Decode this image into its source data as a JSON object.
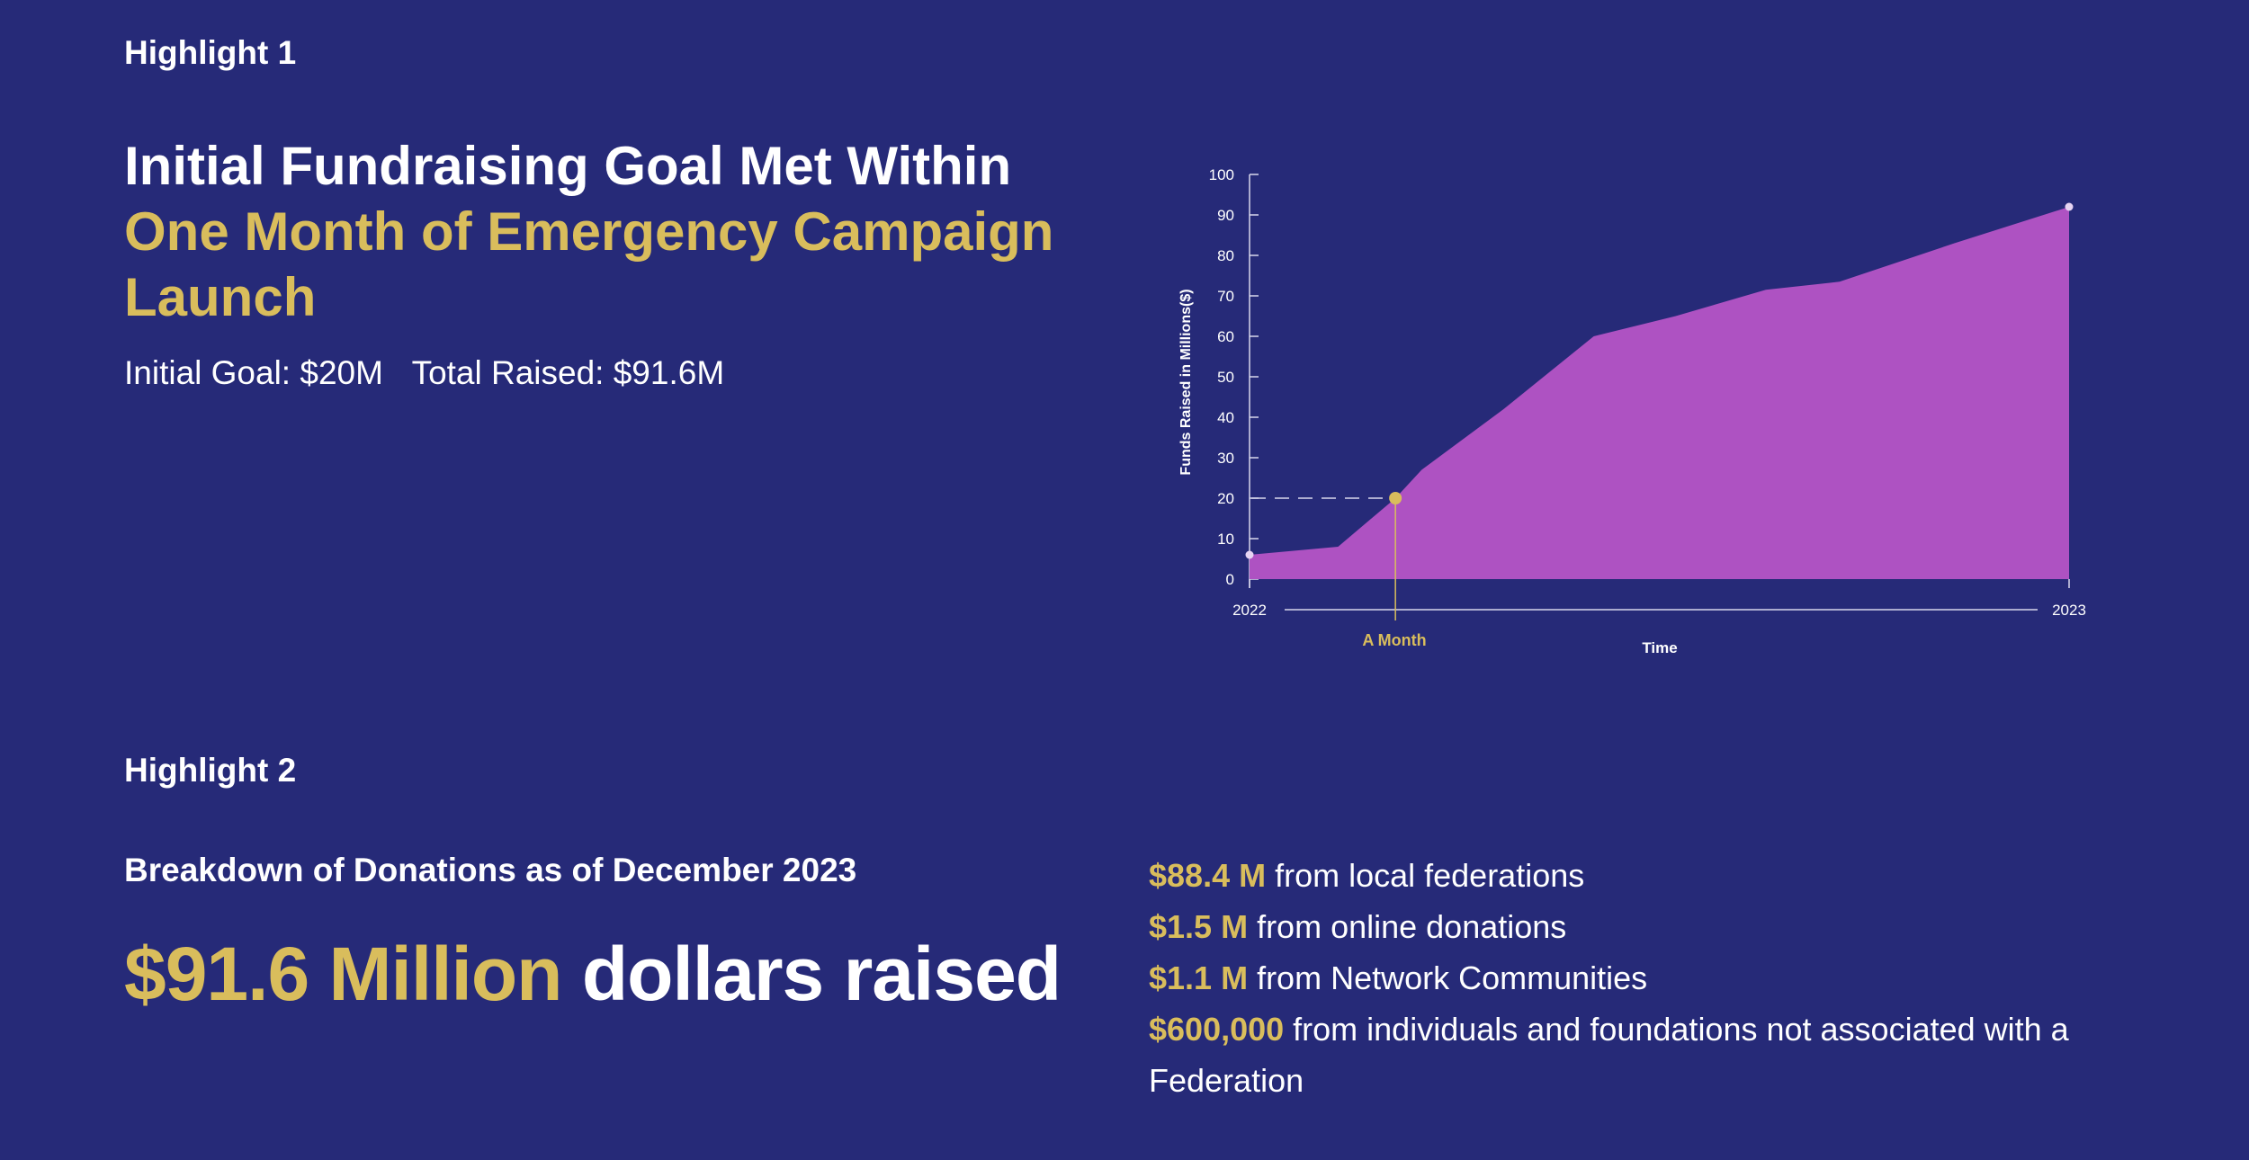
{
  "highlight1": {
    "label": "Highlight 1",
    "headline_white": "Initial Fundraising Goal Met Within",
    "headline_gold_1": "One Month of Emergency Campaign",
    "headline_gold_2": "Launch",
    "initial_goal": "Initial Goal: $20M",
    "total_raised": "Total Raised: $91.6M"
  },
  "highlight2": {
    "label": "Highlight 2",
    "subtitle": "Breakdown of Donations as of December 2023",
    "big_amount": "$91.6 Million",
    "big_suffix": "dollars raised",
    "items": [
      {
        "amount": "$88.4 M",
        "text": "from local federations"
      },
      {
        "amount": "$1.5 M",
        "text": "from online donations"
      },
      {
        "amount": "$1.1 M",
        "text": "from Network Communities"
      },
      {
        "amount": "$600,000",
        "text": "from individuals and foundations not associated with a Federation"
      }
    ]
  },
  "colors": {
    "background": "#262a78",
    "gold": "#d9bd5c",
    "area": "#ae52c2",
    "axis": "#d8d8ec"
  },
  "chart_data": {
    "type": "area",
    "ylabel": "Funds Raised in Millions($)",
    "xlabel": "Time",
    "ylim": [
      0,
      100
    ],
    "yticks": [
      0,
      10,
      20,
      30,
      40,
      50,
      60,
      70,
      80,
      90,
      100
    ],
    "x_start_label": "2022",
    "x_end_label": "2023",
    "annotation_label": "A Month",
    "annotation_value": 20,
    "annotation_x": 0.178,
    "series": [
      {
        "points": [
          {
            "x": 0.0,
            "y": 6
          },
          {
            "x": 0.108,
            "y": 8
          },
          {
            "x": 0.178,
            "y": 20
          },
          {
            "x": 0.21,
            "y": 27
          },
          {
            "x": 0.31,
            "y": 42
          },
          {
            "x": 0.42,
            "y": 60
          },
          {
            "x": 0.52,
            "y": 65
          },
          {
            "x": 0.63,
            "y": 71.5
          },
          {
            "x": 0.72,
            "y": 73.5
          },
          {
            "x": 0.86,
            "y": 83
          },
          {
            "x": 1.0,
            "y": 92
          }
        ]
      }
    ]
  }
}
